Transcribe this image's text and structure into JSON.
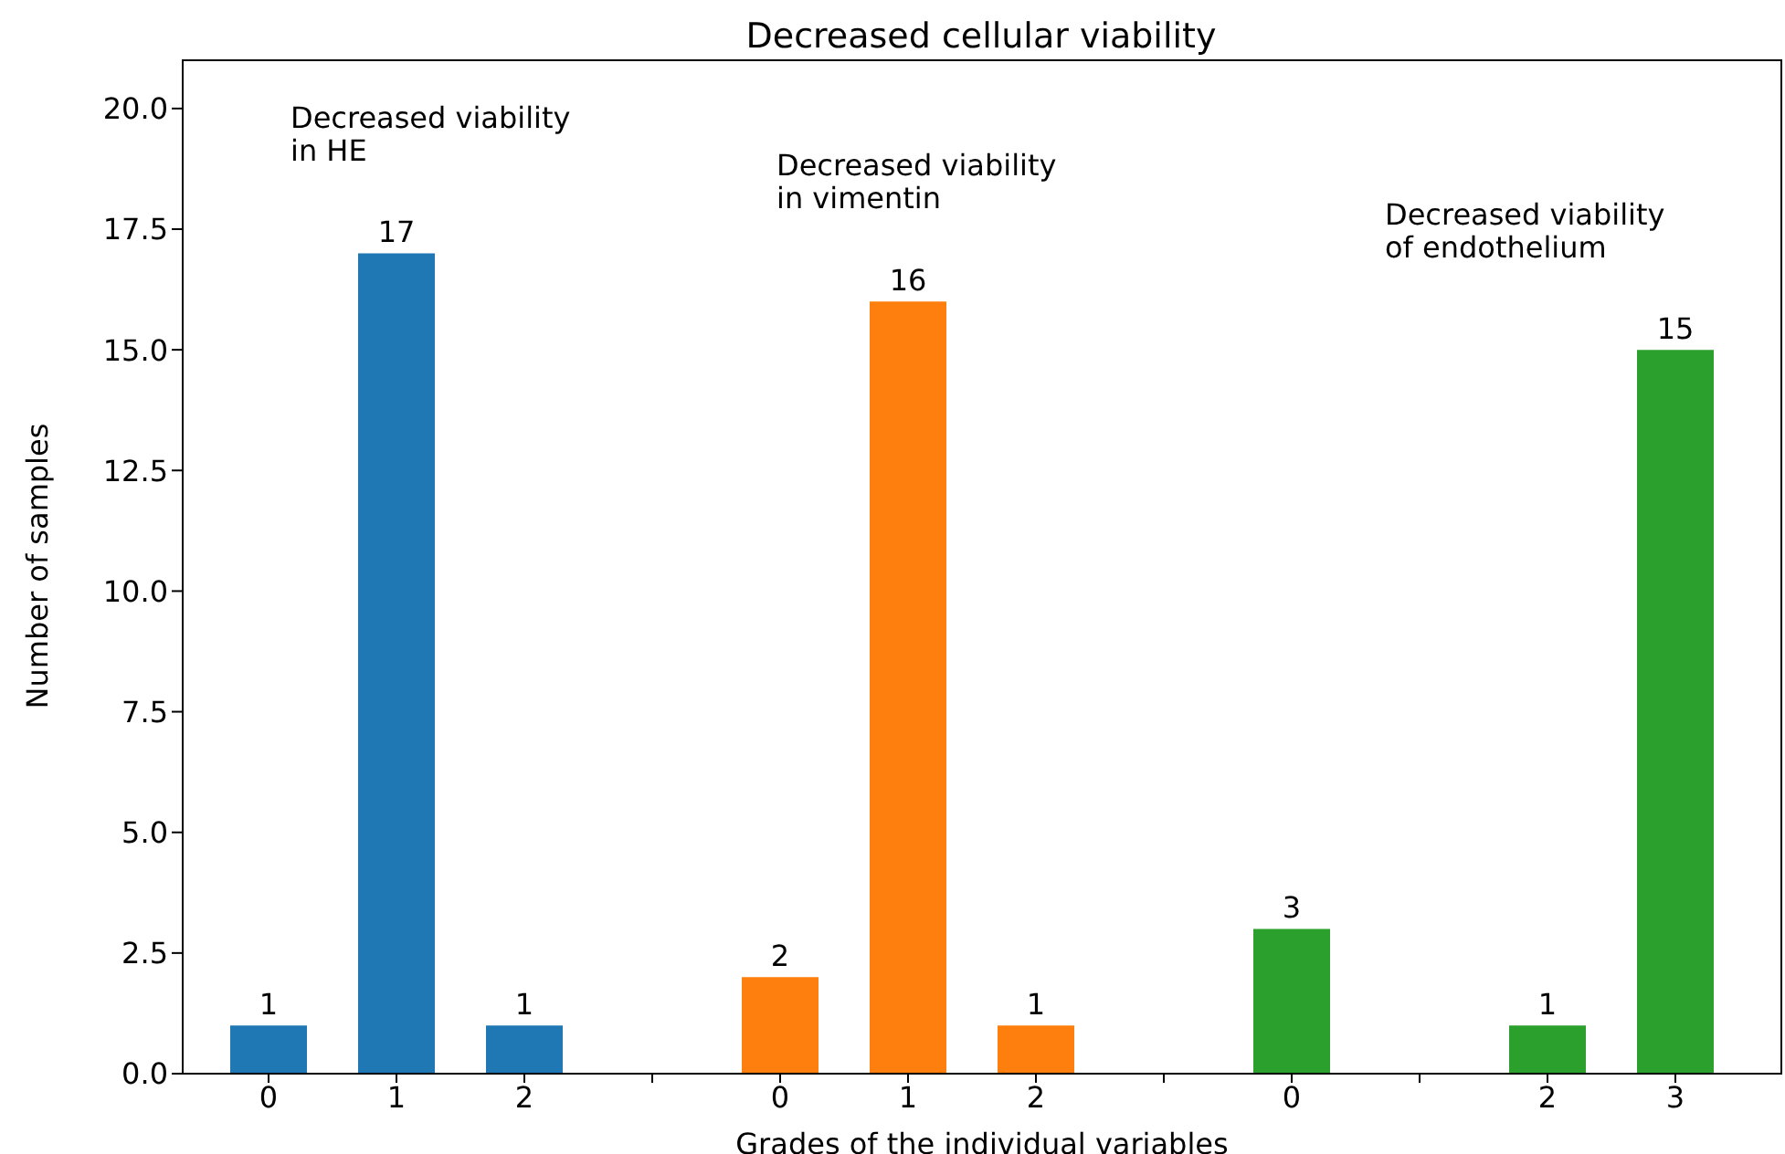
{
  "chart_data": {
    "type": "bar",
    "title": "Decreased cellular viability",
    "xlabel": "Grades of the individual variables",
    "ylabel": "Number of samples",
    "categories": [
      "0",
      "1",
      "2",
      null,
      "0",
      "1",
      "2",
      null,
      "0",
      null,
      "2",
      "3"
    ],
    "series": [
      {
        "color": "#1f77b4",
        "values": [
          1,
          17,
          1,
          null,
          null,
          null,
          null,
          null,
          null,
          null,
          null,
          null
        ]
      },
      {
        "color": "#ff7f0e",
        "values": [
          null,
          null,
          null,
          null,
          2,
          16,
          1,
          null,
          null,
          null,
          null,
          null
        ]
      },
      {
        "color": "#2ca02c",
        "values": [
          null,
          null,
          null,
          null,
          null,
          null,
          null,
          null,
          3,
          null,
          1,
          15
        ]
      }
    ],
    "annotations": [
      "Decreased viability\nin HE",
      "Decreased viability\nin vimentin",
      "Decreased viability\nof endothelium"
    ],
    "ylim": [
      0,
      21
    ],
    "yticks": [
      {
        "value": 0,
        "label": "0.0"
      },
      {
        "value": 2.5,
        "label": "2.5"
      },
      {
        "value": 5,
        "label": "5.0"
      },
      {
        "value": 7.5,
        "label": "7.5"
      },
      {
        "value": 10,
        "label": "10.0"
      },
      {
        "value": 12.5,
        "label": "12.5"
      },
      {
        "value": 15,
        "label": "15.0"
      },
      {
        "value": 17.5,
        "label": "17.5"
      },
      {
        "value": 20,
        "label": "20.0"
      }
    ],
    "data_labels": true,
    "grid": false,
    "legend": false
  }
}
